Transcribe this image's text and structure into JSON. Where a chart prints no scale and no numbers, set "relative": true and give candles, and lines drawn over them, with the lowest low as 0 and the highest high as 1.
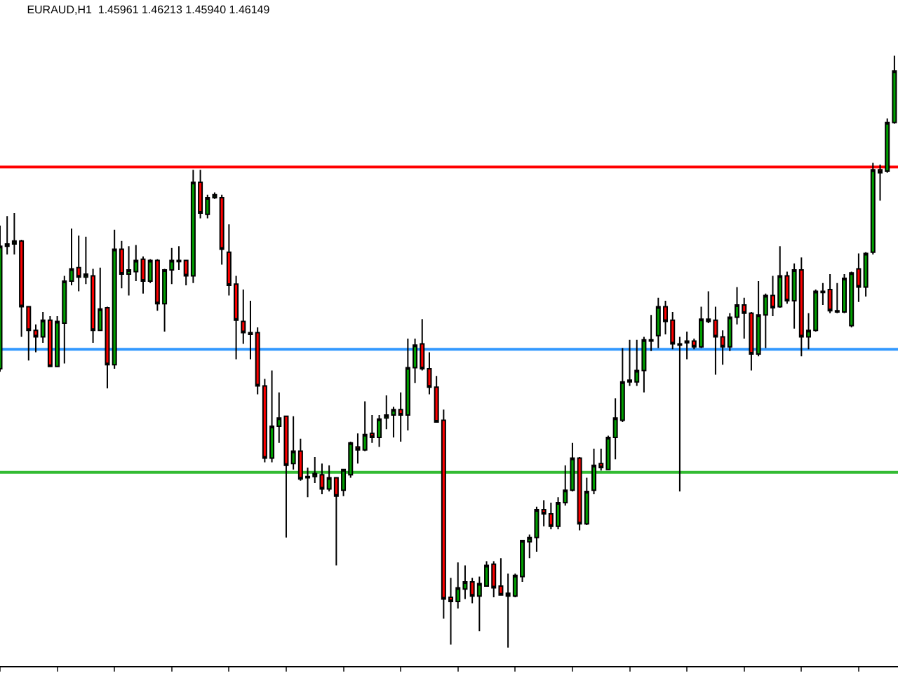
{
  "chart_data": {
    "type": "candlestick",
    "title": "EURAUD,H1  1.45961 1.46213 1.45940 1.46149",
    "relative": true,
    "tick_labels": false,
    "categories": [
      null,
      null,
      null,
      null,
      null,
      null,
      null,
      null,
      null,
      null,
      null,
      null,
      null,
      null,
      null,
      null,
      null,
      null,
      null,
      null,
      null,
      null,
      null,
      null,
      null,
      null,
      null,
      null,
      null,
      null,
      null,
      null,
      null,
      null,
      null,
      null,
      null,
      null,
      null,
      null,
      null,
      null,
      null,
      null,
      null,
      null,
      null,
      null,
      null,
      null,
      null,
      null,
      null,
      null,
      null,
      null,
      null,
      null,
      null,
      null,
      null,
      null,
      null,
      null,
      null,
      null,
      null,
      null,
      null,
      null,
      null,
      null,
      null,
      null,
      null,
      null,
      null,
      null,
      null,
      null,
      null,
      null,
      null,
      null,
      null,
      null,
      null,
      null,
      null,
      null,
      null,
      null,
      null,
      null,
      null,
      null,
      null,
      null,
      null,
      null,
      null,
      null,
      null,
      null,
      null,
      null,
      null,
      null,
      null,
      null,
      null,
      null,
      null,
      null,
      null,
      null,
      null,
      null,
      null,
      null,
      null,
      null,
      null,
      null,
      null,
      null
    ],
    "ohlc": [
      [
        0.471,
        0.713,
        0.466,
        0.678
      ],
      [
        0.678,
        0.729,
        0.664,
        0.682
      ],
      [
        0.682,
        0.734,
        0.664,
        0.687
      ],
      [
        0.687,
        0.689,
        0.525,
        0.576
      ],
      [
        0.576,
        0.576,
        0.485,
        0.536
      ],
      [
        0.536,
        0.546,
        0.499,
        0.525
      ],
      [
        0.525,
        0.567,
        0.515,
        0.553
      ],
      [
        0.553,
        0.56,
        0.475,
        0.475
      ],
      [
        0.475,
        0.56,
        0.475,
        0.551
      ],
      [
        0.548,
        0.628,
        0.48,
        0.619
      ],
      [
        0.619,
        0.708,
        0.612,
        0.64
      ],
      [
        0.642,
        0.696,
        0.602,
        0.626
      ],
      [
        0.626,
        0.694,
        0.614,
        0.631
      ],
      [
        0.628,
        0.64,
        0.515,
        0.536
      ],
      [
        0.536,
        0.642,
        0.536,
        0.572
      ],
      [
        0.574,
        0.576,
        0.438,
        0.478
      ],
      [
        0.478,
        0.706,
        0.471,
        0.673
      ],
      [
        0.673,
        0.687,
        0.607,
        0.631
      ],
      [
        0.631,
        0.678,
        0.595,
        0.638
      ],
      [
        0.635,
        0.68,
        0.619,
        0.654
      ],
      [
        0.656,
        0.661,
        0.598,
        0.619
      ],
      [
        0.619,
        0.656,
        0.616,
        0.654
      ],
      [
        0.654,
        0.656,
        0.569,
        0.581
      ],
      [
        0.581,
        0.64,
        0.534,
        0.638
      ],
      [
        0.638,
        0.675,
        0.614,
        0.654
      ],
      [
        0.652,
        0.678,
        0.638,
        0.654
      ],
      [
        0.654,
        0.654,
        0.612,
        0.628
      ],
      [
        0.628,
        0.807,
        0.616,
        0.786
      ],
      [
        0.786,
        0.807,
        0.725,
        0.734
      ],
      [
        0.732,
        0.765,
        0.725,
        0.76
      ],
      [
        0.76,
        0.769,
        0.758,
        0.765
      ],
      [
        0.76,
        0.765,
        0.647,
        0.673
      ],
      [
        0.668,
        0.715,
        0.595,
        0.612
      ],
      [
        0.614,
        0.628,
        0.487,
        0.553
      ],
      [
        0.551,
        0.605,
        0.513,
        0.532
      ],
      [
        0.529,
        0.586,
        0.487,
        0.532
      ],
      [
        0.532,
        0.541,
        0.428,
        0.442
      ],
      [
        0.442,
        0.454,
        0.313,
        0.32
      ],
      [
        0.32,
        0.468,
        0.313,
        0.374
      ],
      [
        0.374,
        0.431,
        0.346,
        0.388
      ],
      [
        0.391,
        0.391,
        0.186,
        0.308
      ],
      [
        0.311,
        0.391,
        0.301,
        0.332
      ],
      [
        0.332,
        0.353,
        0.282,
        0.285
      ],
      [
        0.287,
        0.304,
        0.254,
        0.289
      ],
      [
        0.289,
        0.322,
        0.278,
        0.294
      ],
      [
        0.292,
        0.311,
        0.259,
        0.268
      ],
      [
        0.268,
        0.308,
        0.264,
        0.287
      ],
      [
        0.287,
        0.287,
        0.139,
        0.256
      ],
      [
        0.266,
        0.301,
        0.256,
        0.301
      ],
      [
        0.292,
        0.348,
        0.287,
        0.346
      ],
      [
        0.339,
        0.362,
        0.311,
        0.334
      ],
      [
        0.334,
        0.416,
        0.332,
        0.36
      ],
      [
        0.362,
        0.393,
        0.346,
        0.355
      ],
      [
        0.355,
        0.393,
        0.339,
        0.386
      ],
      [
        0.388,
        0.426,
        0.369,
        0.393
      ],
      [
        0.393,
        0.407,
        0.355,
        0.402
      ],
      [
        0.402,
        0.431,
        0.348,
        0.393
      ],
      [
        0.393,
        0.522,
        0.367,
        0.473
      ],
      [
        0.473,
        0.522,
        0.447,
        0.511
      ],
      [
        0.513,
        0.555,
        0.468,
        0.471
      ],
      [
        0.471,
        0.499,
        0.428,
        0.44
      ],
      [
        0.44,
        0.459,
        0.381,
        0.381
      ],
      [
        0.384,
        0.402,
        0.049,
        0.082
      ],
      [
        0.085,
        0.118,
        0.005,
        0.078
      ],
      [
        0.078,
        0.144,
        0.066,
        0.101
      ],
      [
        0.099,
        0.139,
        0.082,
        0.111
      ],
      [
        0.111,
        0.118,
        0.075,
        0.087
      ],
      [
        0.087,
        0.12,
        0.028,
        0.108
      ],
      [
        0.104,
        0.146,
        0.104,
        0.139
      ],
      [
        0.141,
        0.146,
        0.085,
        0.101
      ],
      [
        0.104,
        0.151,
        0.089,
        0.089
      ],
      [
        0.092,
        0.125,
        0.0,
        0.087
      ],
      [
        0.087,
        0.125,
        0.085,
        0.122
      ],
      [
        0.12,
        0.181,
        0.111,
        0.181
      ],
      [
        0.179,
        0.191,
        0.151,
        0.186
      ],
      [
        0.186,
        0.238,
        0.162,
        0.233
      ],
      [
        0.233,
        0.249,
        0.205,
        0.226
      ],
      [
        0.226,
        0.245,
        0.2,
        0.205
      ],
      [
        0.205,
        0.254,
        0.2,
        0.245
      ],
      [
        0.245,
        0.308,
        0.24,
        0.266
      ],
      [
        0.266,
        0.346,
        0.264,
        0.32
      ],
      [
        0.32,
        0.322,
        0.198,
        0.209
      ],
      [
        0.209,
        0.287,
        0.207,
        0.264
      ],
      [
        0.266,
        0.336,
        0.259,
        0.308
      ],
      [
        0.311,
        0.336,
        0.299,
        0.304
      ],
      [
        0.301,
        0.358,
        0.301,
        0.355
      ],
      [
        0.355,
        0.421,
        0.318,
        0.388
      ],
      [
        0.384,
        0.506,
        0.381,
        0.449
      ],
      [
        0.449,
        0.52,
        0.442,
        0.452
      ],
      [
        0.449,
        0.52,
        0.442,
        0.468
      ],
      [
        0.468,
        0.525,
        0.431,
        0.52
      ],
      [
        0.518,
        0.562,
        0.501,
        0.52
      ],
      [
        0.527,
        0.591,
        0.506,
        0.576
      ],
      [
        0.576,
        0.586,
        0.529,
        0.551
      ],
      [
        0.553,
        0.567,
        0.504,
        0.513
      ],
      [
        0.513,
        0.525,
        0.264,
        0.511
      ],
      [
        0.515,
        0.534,
        0.487,
        0.518
      ],
      [
        0.518,
        0.522,
        0.504,
        0.508
      ],
      [
        0.508,
        0.576,
        0.506,
        0.555
      ],
      [
        0.551,
        0.602,
        0.548,
        0.555
      ],
      [
        0.553,
        0.576,
        0.461,
        0.525
      ],
      [
        0.525,
        0.536,
        0.478,
        0.508
      ],
      [
        0.508,
        0.565,
        0.501,
        0.558
      ],
      [
        0.558,
        0.609,
        0.546,
        0.579
      ],
      [
        0.579,
        0.591,
        0.522,
        0.565
      ],
      [
        0.565,
        0.567,
        0.468,
        0.496
      ],
      [
        0.496,
        0.619,
        0.492,
        0.562
      ],
      [
        0.562,
        0.598,
        0.506,
        0.595
      ],
      [
        0.595,
        0.628,
        0.56,
        0.574
      ],
      [
        0.576,
        0.678,
        0.574,
        0.628
      ],
      [
        0.628,
        0.635,
        0.581,
        0.586
      ],
      [
        0.586,
        0.649,
        0.539,
        0.638
      ],
      [
        0.638,
        0.659,
        0.492,
        0.525
      ],
      [
        0.525,
        0.565,
        0.504,
        0.536
      ],
      [
        0.536,
        0.605,
        0.534,
        0.602
      ],
      [
        0.6,
        0.616,
        0.579,
        0.602
      ],
      [
        0.605,
        0.631,
        0.565,
        0.569
      ],
      [
        0.567,
        0.616,
        0.565,
        0.569
      ],
      [
        0.567,
        0.631,
        0.565,
        0.624
      ],
      [
        0.544,
        0.635,
        0.541,
        0.633
      ],
      [
        0.64,
        0.666,
        0.584,
        0.609
      ],
      [
        0.609,
        0.668,
        0.593,
        0.666
      ],
      [
        0.668,
        0.819,
        0.664,
        0.807
      ],
      [
        0.807,
        0.816,
        0.755,
        0.802
      ],
      [
        0.805,
        0.894,
        0.802,
        0.887
      ],
      [
        0.887,
        1.0,
        0.885,
        0.974
      ]
    ],
    "ref_lines": [
      {
        "axis": "y",
        "value": 0.812,
        "color": "#ff0000"
      },
      {
        "axis": "y",
        "value": 0.504,
        "color": "#3399ff"
      },
      {
        "axis": "y",
        "value": 0.296,
        "color": "#33bb33"
      }
    ]
  }
}
